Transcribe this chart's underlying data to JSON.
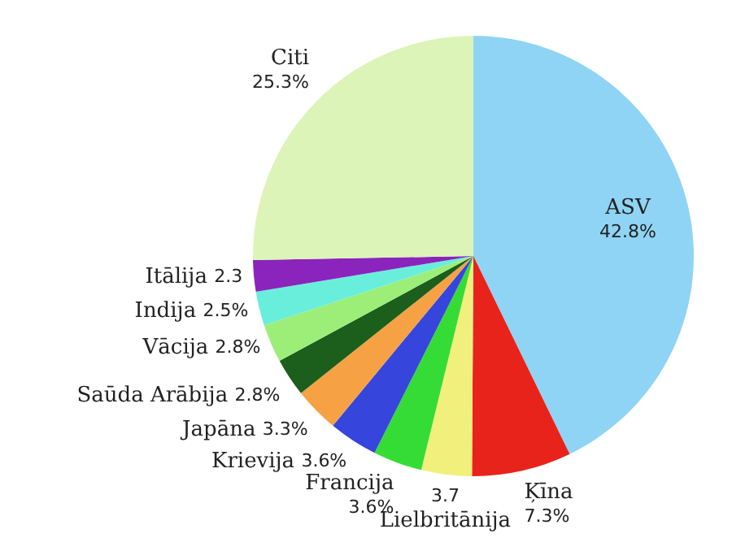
{
  "chart_data": {
    "type": "pie",
    "categories": [
      "ASV",
      "Ķīna",
      "Lielbritānija",
      "Francija",
      "Krievija",
      "Japāna",
      "Saūda Arābija",
      "Vācija",
      "Indija",
      "Itālija",
      "Citi"
    ],
    "values": [
      42.8,
      7.3,
      3.7,
      3.6,
      3.6,
      3.3,
      2.8,
      2.8,
      2.5,
      2.3,
      25.3
    ],
    "value_labels": [
      "42.8%",
      "7.3%",
      "3.7",
      "3.6%",
      "3.6%",
      "3.3%",
      "2.8%",
      "2.8%",
      "2.5%",
      "2.3",
      "25.3%"
    ],
    "colors": [
      "#8fd4f4",
      "#e8231c",
      "#f2f07c",
      "#36dc36",
      "#3646dc",
      "#f6a244",
      "#1c5e1c",
      "#9cee78",
      "#6aeedc",
      "#8a24bc",
      "#dcf4b8"
    ],
    "legend": false
  }
}
